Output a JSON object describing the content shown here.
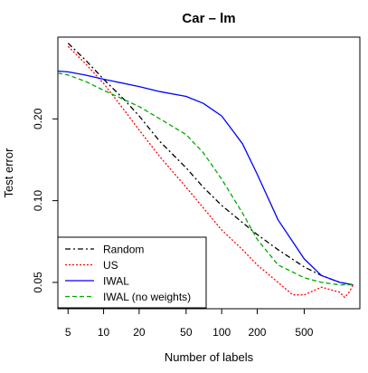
{
  "chart_data": {
    "type": "line",
    "title": "Car – lm",
    "xlabel": "Number of labels",
    "ylabel": "Test error",
    "x_scale": "log",
    "y_scale": "log",
    "xlim": [
      4.1,
      1480
    ],
    "ylim": [
      0.04,
      0.4
    ],
    "x_ticks": [
      5,
      10,
      20,
      50,
      100,
      200,
      500
    ],
    "x_tick_labels": [
      "5",
      "10",
      "20",
      "50",
      "100",
      "200",
      "500"
    ],
    "y_ticks": [
      0.05,
      0.1,
      0.2
    ],
    "y_tick_labels": [
      "0.05",
      "0.10",
      "0.20"
    ],
    "legend_position": "bottom-left",
    "series": [
      {
        "name": "Random",
        "color": "#000000",
        "dash": "6,3,2,3",
        "x": [
          5,
          7,
          10,
          15,
          20,
          30,
          50,
          70,
          100,
          150,
          200,
          300,
          500,
          700,
          1000,
          1300
        ],
        "y": [
          0.38,
          0.33,
          0.28,
          0.235,
          0.205,
          0.165,
          0.132,
          0.112,
          0.096,
          0.083,
          0.075,
          0.066,
          0.057,
          0.053,
          0.05,
          0.049
        ]
      },
      {
        "name": "US",
        "color": "#ff0000",
        "dash": "2,2",
        "x": [
          5,
          7,
          10,
          15,
          20,
          30,
          50,
          70,
          100,
          150,
          200,
          300,
          400,
          500,
          700,
          1000,
          1100,
          1200,
          1300
        ],
        "y": [
          0.37,
          0.32,
          0.27,
          0.215,
          0.182,
          0.145,
          0.112,
          0.094,
          0.078,
          0.066,
          0.058,
          0.05,
          0.045,
          0.045,
          0.048,
          0.046,
          0.044,
          0.046,
          0.049
        ]
      },
      {
        "name": "IWAL",
        "color": "#0000ff",
        "dash": "",
        "x": [
          4.1,
          5,
          7,
          10,
          20,
          30,
          50,
          70,
          100,
          150,
          200,
          300,
          500,
          700,
          1000,
          1300
        ],
        "y": [
          0.3,
          0.298,
          0.29,
          0.28,
          0.263,
          0.252,
          0.242,
          0.228,
          0.205,
          0.162,
          0.125,
          0.085,
          0.061,
          0.053,
          0.05,
          0.049
        ]
      },
      {
        "name": "IWAL (no weights)",
        "color": "#00aa00",
        "dash": "5,3",
        "x": [
          4.1,
          5,
          7,
          10,
          20,
          30,
          50,
          70,
          100,
          150,
          200,
          300,
          500,
          700,
          1000,
          1300
        ],
        "y": [
          0.295,
          0.29,
          0.275,
          0.255,
          0.222,
          0.2,
          0.175,
          0.15,
          0.12,
          0.09,
          0.072,
          0.058,
          0.052,
          0.05,
          0.049,
          0.049
        ]
      }
    ]
  }
}
